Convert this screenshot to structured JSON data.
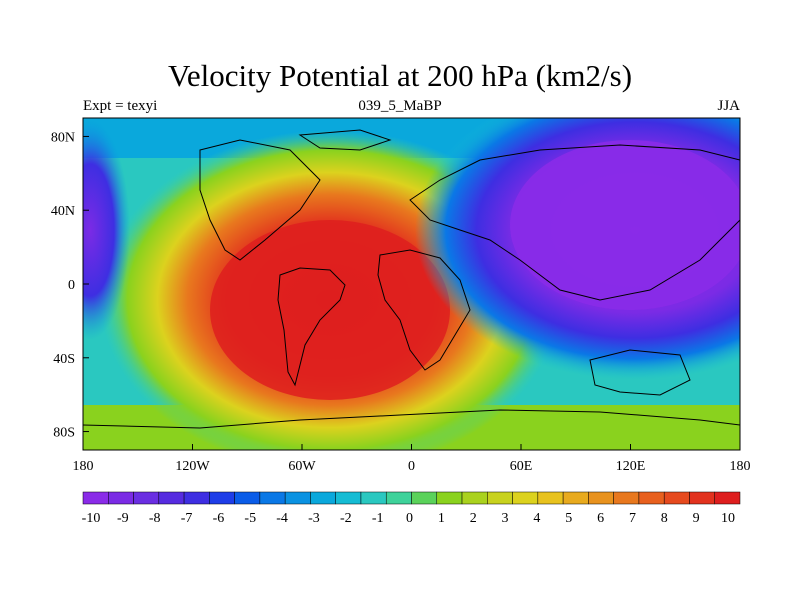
{
  "title": "Velocity Potential at 200 hPa (km2/s)",
  "subtitle_left": "Expt = texyi",
  "subtitle_center": "039_5_MaBP",
  "subtitle_right": "JJA",
  "map": {
    "lon_range": [
      -180,
      180
    ],
    "lat_range": [
      -90,
      90
    ],
    "x_ticks": [
      {
        "value": -180,
        "label": "180"
      },
      {
        "value": -120,
        "label": "120W"
      },
      {
        "value": -60,
        "label": "60W"
      },
      {
        "value": 0,
        "label": "0"
      },
      {
        "value": 60,
        "label": "60E"
      },
      {
        "value": 120,
        "label": "120E"
      },
      {
        "value": 180,
        "label": "180"
      }
    ],
    "y_ticks": [
      {
        "value": 80,
        "label": "80N"
      },
      {
        "value": 40,
        "label": "40N"
      },
      {
        "value": 0,
        "label": "0"
      },
      {
        "value": -40,
        "label": "40S"
      },
      {
        "value": -80,
        "label": "80S"
      }
    ],
    "field": {
      "variable": "velocity potential",
      "units": "km2/s",
      "level_hPa": 200,
      "max_center": {
        "lon": -40,
        "lat": -20,
        "value": 10
      },
      "min_center": {
        "lon": 120,
        "lat": 20,
        "value": -10
      }
    }
  },
  "colorbar": {
    "labels": [
      "-10",
      "-9",
      "-8",
      "-7",
      "-6",
      "-5",
      "-4",
      "-3",
      "-2",
      "-1",
      "0",
      "1",
      "2",
      "3",
      "4",
      "5",
      "6",
      "7",
      "8",
      "9",
      "10"
    ],
    "colors": [
      "#8a2be8",
      "#7b2be5",
      "#6a2ee2",
      "#562be0",
      "#3e2ee2",
      "#1e3de8",
      "#0a5ce8",
      "#0a78e6",
      "#0a92e2",
      "#0aa8dc",
      "#15bcd4",
      "#2ac8c0",
      "#3ed29a",
      "#5ad25a",
      "#8ad21e",
      "#aad21e",
      "#c8d21e",
      "#dcd21e",
      "#e8c21e",
      "#e8aa1e",
      "#e8921e",
      "#e8781e",
      "#e8601e",
      "#e64a1e",
      "#e2321e",
      "#de1e1e"
    ]
  }
}
